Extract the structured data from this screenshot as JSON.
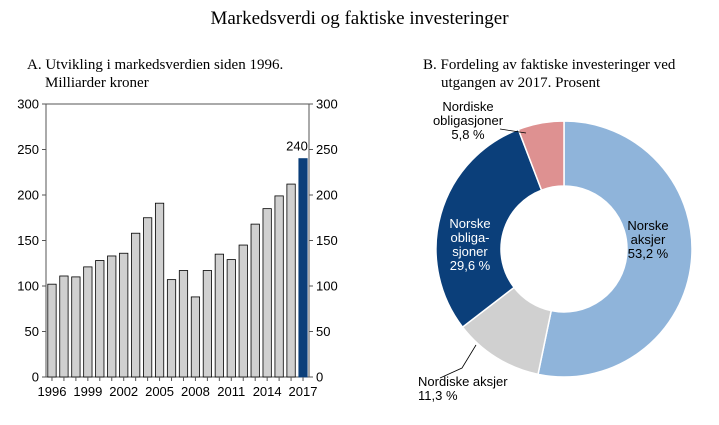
{
  "title": "Markedsverdi og faktiske investeringer",
  "chart_data": [
    {
      "type": "bar",
      "title_lines": [
        "A.  Utvikling i markedsverdien siden 1996.",
        "Milliarder kroner"
      ],
      "categories": [
        "1996",
        "1997",
        "1998",
        "1999",
        "2000",
        "2001",
        "2002",
        "2003",
        "2004",
        "2005",
        "2006",
        "2007",
        "2008",
        "2009",
        "2010",
        "2011",
        "2012",
        "2013",
        "2014",
        "2015",
        "2016",
        "2017"
      ],
      "values": [
        102,
        111,
        110,
        121,
        128,
        133,
        136,
        158,
        175,
        191,
        107,
        117,
        88,
        117,
        135,
        129,
        145,
        168,
        185,
        199,
        212,
        240
      ],
      "x_tick_labels": [
        "1996",
        "1999",
        "2002",
        "2005",
        "2008",
        "2011",
        "2014",
        "2017"
      ],
      "y_ticks": [
        0,
        50,
        100,
        150,
        200,
        250,
        300
      ],
      "y_tick_labels": [
        "0",
        "50",
        "100",
        "150",
        "200",
        "250",
        "300"
      ],
      "ylim": [
        0,
        300
      ],
      "highlight_label": "240",
      "colors": {
        "bar": "#d0d0d0",
        "highlight": "#0b3f7a",
        "border": "#000000"
      }
    },
    {
      "type": "pie",
      "title_lines": [
        "B.  Fordeling av faktiske investeringer ved",
        "utgangen av 2017. Prosent"
      ],
      "slices": [
        {
          "name": "Norske aksjer",
          "label_lines": [
            "Norske",
            "aksjer",
            "53,2 %"
          ],
          "value": 53.2,
          "color": "#8fb4da"
        },
        {
          "name": "Nordiske aksjer",
          "label_lines": [
            "Nordiske aksjer",
            "11,3 %"
          ],
          "value": 11.3,
          "color": "#d0d0d0"
        },
        {
          "name": "Norske obligasjoner",
          "label_lines": [
            "Norske",
            "obliga-",
            "sjoner",
            "29,6 %"
          ],
          "value": 29.6,
          "color": "#0b3f7a"
        },
        {
          "name": "Nordiske obligasjoner",
          "label_lines": [
            "Nordiske",
            "obligasjoner",
            "5,8 %"
          ],
          "value": 5.8,
          "color": "#de9191"
        }
      ]
    }
  ]
}
